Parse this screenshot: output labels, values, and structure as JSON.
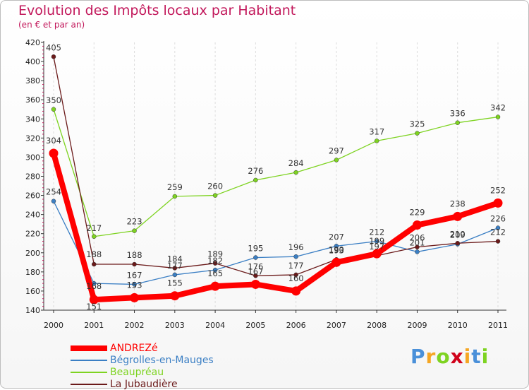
{
  "chart_data": {
    "type": "line",
    "title": "Evolution des Impôts locaux par Habitant",
    "subtitle": "(en € et par an)",
    "xlabel": "",
    "ylabel": "",
    "ylim": [
      140,
      420
    ],
    "yticks": [
      140,
      160,
      180,
      200,
      220,
      240,
      260,
      280,
      300,
      320,
      340,
      360,
      380,
      400,
      420
    ],
    "categories": [
      "2000",
      "2001",
      "2002",
      "2003",
      "2004",
      "2005",
      "2006",
      "2007",
      "2008",
      "2009",
      "2010",
      "2011"
    ],
    "series": [
      {
        "name": "ANDREZé",
        "color": "#ff0000",
        "values": [
          304,
          151,
          153,
          155,
          165,
          167,
          160,
          190,
          199,
          229,
          238,
          252
        ]
      },
      {
        "name": "Bégrolles-en-Mauges",
        "color": "#3b7fc4",
        "values": [
          254,
          168,
          167,
          177,
          182,
          195,
          196,
          207,
          212,
          201,
          209,
          226
        ]
      },
      {
        "name": "Beaupréau",
        "color": "#7ed321",
        "values": [
          350,
          217,
          223,
          259,
          260,
          276,
          284,
          297,
          317,
          325,
          336,
          342
        ]
      },
      {
        "name": "La Jubaudière",
        "color": "#6b1a1a",
        "values": [
          405,
          188,
          188,
          184,
          189,
          176,
          177,
          193,
          197,
          206,
          210,
          212
        ]
      }
    ],
    "legend_position": "bottom-left"
  },
  "brand": {
    "letters": [
      "P",
      "r",
      "o",
      "x",
      "i",
      "t",
      "i"
    ],
    "colors": [
      "#4a90d9",
      "#f5a623",
      "#7ed321",
      "#d0021b",
      "#f5a623",
      "#4a90d9",
      "#7ed321"
    ]
  }
}
